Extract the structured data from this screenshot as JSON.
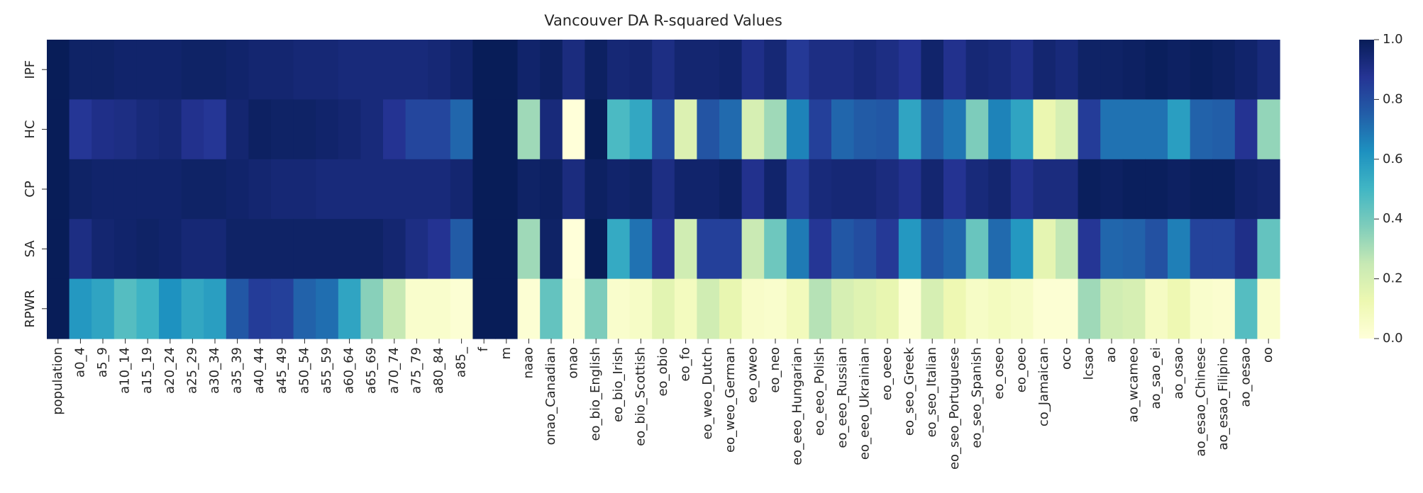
{
  "chart_data": {
    "type": "heatmap",
    "title": "Vancouver DA R-squared Values",
    "xlabel": "",
    "ylabel": "",
    "x": [
      "population",
      "a0_4",
      "a5_9",
      "a10_14",
      "a15_19",
      "a20_24",
      "a25_29",
      "a30_34",
      "a35_39",
      "a40_44",
      "a45_49",
      "a50_54",
      "a55_59",
      "a60_64",
      "a65_69",
      "a70_74",
      "a75_79",
      "a80_84",
      "a85_",
      "f",
      "m",
      "naao",
      "onao_Canadian",
      "onao",
      "eo_bio_English",
      "eo_bio_Irish",
      "eo_bio_Scottish",
      "eo_obio",
      "eo_fo",
      "eo_weo_Dutch",
      "eo_weo_German",
      "eo_oweo",
      "eo_neo",
      "eo_eeo_Hungarian",
      "eo_eeo_Polish",
      "eo_eeo_Russian",
      "eo_eeo_Ukrainian",
      "eo_oeeo",
      "eo_seo_Greek",
      "eo_seo_Italian",
      "eo_seo_Portuguese",
      "eo_seo_Spanish",
      "eo_oseo",
      "eo_oeo",
      "co_Jamaican",
      "oco",
      "lcsao",
      "ao",
      "ao_wcameo",
      "ao_sao_ei",
      "ao_osao",
      "ao_esao_Chinese",
      "ao_esao_Filipino",
      "ao_oesao",
      "oo"
    ],
    "y": [
      "IPF",
      "HC",
      "CP",
      "SA",
      "RPWR"
    ],
    "values": [
      [
        1.0,
        0.97,
        0.97,
        0.96,
        0.96,
        0.96,
        0.97,
        0.97,
        0.96,
        0.95,
        0.95,
        0.94,
        0.94,
        0.93,
        0.93,
        0.93,
        0.93,
        0.94,
        0.96,
        1.0,
        1.0,
        0.96,
        0.98,
        0.92,
        0.98,
        0.94,
        0.95,
        0.91,
        0.95,
        0.95,
        0.96,
        0.9,
        0.94,
        0.86,
        0.91,
        0.91,
        0.93,
        0.91,
        0.88,
        0.96,
        0.89,
        0.94,
        0.93,
        0.9,
        0.95,
        0.93,
        0.97,
        0.97,
        0.98,
        0.99,
        0.98,
        0.99,
        0.98,
        0.96,
        0.93
      ],
      [
        1.0,
        0.87,
        0.9,
        0.91,
        0.93,
        0.94,
        0.89,
        0.87,
        0.95,
        0.98,
        0.97,
        0.97,
        0.96,
        0.95,
        0.93,
        0.88,
        0.82,
        0.82,
        0.73,
        1.0,
        1.0,
        0.32,
        0.93,
        0.0,
        1.0,
        0.48,
        0.55,
        0.8,
        0.18,
        0.78,
        0.72,
        0.2,
        0.32,
        0.66,
        0.84,
        0.73,
        0.76,
        0.77,
        0.56,
        0.75,
        0.69,
        0.38,
        0.66,
        0.56,
        0.13,
        0.2,
        0.85,
        0.7,
        0.7,
        0.7,
        0.58,
        0.74,
        0.75,
        0.88,
        0.34
      ],
      [
        1.0,
        0.97,
        0.96,
        0.96,
        0.96,
        0.96,
        0.97,
        0.97,
        0.96,
        0.95,
        0.94,
        0.94,
        0.93,
        0.93,
        0.93,
        0.93,
        0.93,
        0.93,
        0.95,
        1.0,
        1.0,
        0.97,
        0.98,
        0.92,
        0.98,
        0.96,
        0.97,
        0.91,
        0.96,
        0.96,
        0.98,
        0.89,
        0.96,
        0.86,
        0.93,
        0.94,
        0.94,
        0.92,
        0.89,
        0.95,
        0.88,
        0.93,
        0.95,
        0.89,
        0.92,
        0.92,
        0.99,
        0.98,
        0.99,
        0.99,
        0.98,
        0.99,
        0.99,
        0.96,
        0.95
      ],
      [
        1.0,
        0.91,
        0.95,
        0.96,
        0.97,
        0.96,
        0.94,
        0.94,
        0.97,
        0.97,
        0.97,
        0.97,
        0.97,
        0.97,
        0.97,
        0.95,
        0.91,
        0.88,
        0.76,
        1.0,
        1.0,
        0.32,
        0.97,
        0.0,
        1.0,
        0.54,
        0.7,
        0.88,
        0.22,
        0.84,
        0.84,
        0.24,
        0.41,
        0.68,
        0.87,
        0.77,
        0.8,
        0.86,
        0.6,
        0.77,
        0.73,
        0.42,
        0.72,
        0.6,
        0.15,
        0.26,
        0.87,
        0.73,
        0.74,
        0.79,
        0.67,
        0.83,
        0.83,
        0.9,
        0.43
      ],
      [
        1.0,
        0.6,
        0.56,
        0.46,
        0.51,
        0.62,
        0.55,
        0.58,
        0.77,
        0.85,
        0.84,
        0.74,
        0.71,
        0.56,
        0.36,
        0.25,
        0.04,
        0.04,
        0.02,
        1.0,
        1.0,
        0.02,
        0.43,
        0.02,
        0.38,
        0.04,
        0.06,
        0.16,
        0.08,
        0.22,
        0.14,
        0.05,
        0.04,
        0.09,
        0.28,
        0.2,
        0.17,
        0.14,
        0.02,
        0.2,
        0.12,
        0.06,
        0.08,
        0.06,
        0.02,
        0.02,
        0.32,
        0.22,
        0.2,
        0.07,
        0.12,
        0.04,
        0.03,
        0.46,
        0.04
      ]
    ],
    "colormap": "YlGnBu",
    "colorbar": {
      "ticks": [
        "0.0",
        "0.2",
        "0.4",
        "0.6",
        "0.8",
        "1.0"
      ],
      "range": [
        0.0,
        1.0
      ]
    },
    "grid": false
  }
}
